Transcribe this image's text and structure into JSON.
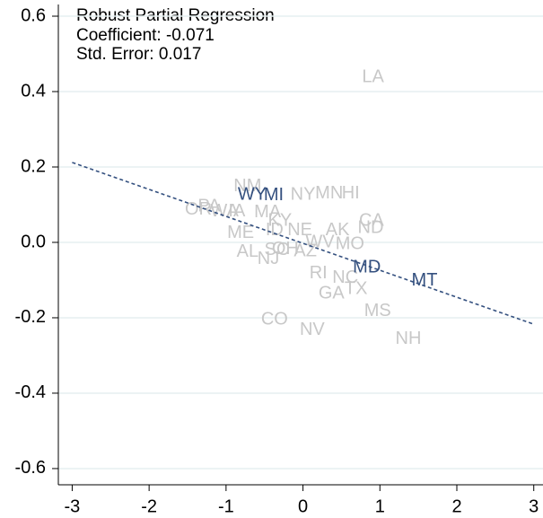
{
  "chart_data": {
    "type": "scatter",
    "annotations": [
      "Robust Partial Regression",
      "Coefficient: -0.071",
      "Std. Error:  0.017"
    ],
    "xlim": [
      -3.18,
      3.12
    ],
    "ylim": [
      -0.643,
      0.631
    ],
    "xticks": [
      -3,
      -2,
      -1,
      0,
      1,
      2,
      3
    ],
    "yticks": [
      0.6,
      0.4,
      0.2,
      {
        "value": 0,
        "label": "0.0"
      },
      -0.2,
      -0.4,
      -0.6
    ],
    "grid": true,
    "fit_line": {
      "color": "#34507f",
      "x": [
        -3,
        3
      ],
      "y": [
        0.212,
        -0.217
      ]
    },
    "series": [
      {
        "color": "#c8c8c8",
        "labels": [
          "LA",
          "NM",
          "NY",
          "MN",
          "HI",
          "PA",
          "OR",
          "WA",
          "IA",
          "MA",
          "CA",
          "KY",
          "ND",
          "AK",
          "NE",
          "ID",
          "ME",
          "WV",
          "MO",
          "AL",
          "SC",
          "OH",
          "AZ",
          "NJ",
          "RI",
          "NC",
          "GA",
          "TX",
          "MS",
          "CO",
          "NV",
          "NH"
        ],
        "x": [
          0.91,
          -0.72,
          0.0,
          0.34,
          0.62,
          -1.22,
          -1.36,
          -1.02,
          -0.86,
          -0.46,
          0.89,
          -0.3,
          0.88,
          0.45,
          -0.04,
          -0.37,
          -0.81,
          0.22,
          0.61,
          -0.72,
          -0.34,
          -0.23,
          0.03,
          -0.45,
          0.2,
          0.55,
          0.37,
          0.69,
          0.97,
          -0.37,
          0.12,
          1.37
        ],
        "values": [
          0.438,
          0.148,
          0.126,
          0.129,
          0.129,
          0.095,
          0.086,
          0.081,
          0.081,
          0.079,
          0.057,
          0.057,
          0.038,
          0.031,
          0.031,
          0.031,
          0.024,
          0.0,
          -0.005,
          -0.026,
          -0.021,
          -0.019,
          -0.024,
          -0.045,
          -0.083,
          -0.095,
          -0.136,
          -0.124,
          -0.183,
          -0.205,
          -0.233,
          -0.257
        ]
      },
      {
        "color": "#34507f",
        "labels": [
          "WY",
          "MI",
          "MD",
          "MT"
        ],
        "x": [
          -0.66,
          -0.38,
          0.83,
          1.58
        ],
        "values": [
          0.126,
          0.124,
          -0.067,
          -0.102
        ]
      }
    ]
  }
}
